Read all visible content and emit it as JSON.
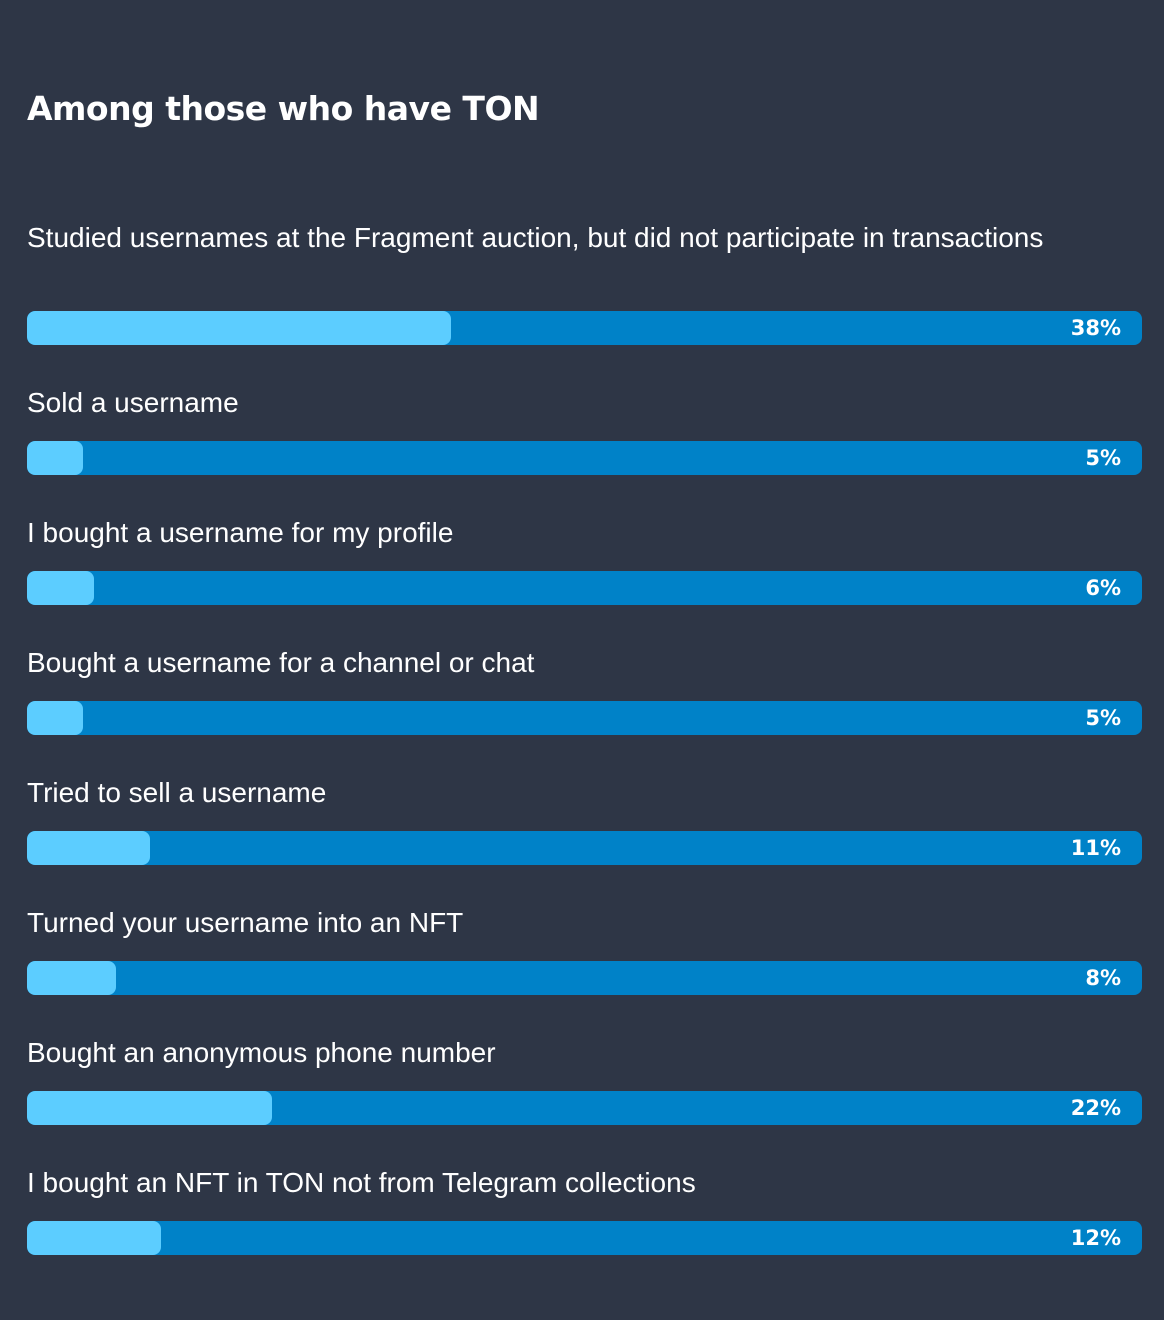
{
  "title": "Among those who have TON",
  "colors": {
    "background": "#2e3646",
    "track": "#0082c8",
    "fill": "#5ccdff",
    "text": "#ffffff"
  },
  "chart_data": {
    "type": "bar",
    "orientation": "horizontal",
    "title": "Among those who have TON",
    "xlim": [
      0,
      100
    ],
    "unit": "%",
    "categories": [
      "Studied usernames at the Fragment auction, but did not participate in transactions",
      "Sold a username",
      "I bought a username for my profile",
      "Bought a username for a channel or chat",
      "Tried to sell a username",
      "Turned your username into an NFT",
      "Bought an anonymous phone number",
      "I bought an NFT in TON not from Telegram collections"
    ],
    "values": [
      38,
      5,
      6,
      5,
      11,
      8,
      22,
      12
    ],
    "value_labels": [
      "38%",
      "5%",
      "6%",
      "5%",
      "11%",
      "8%",
      "22%",
      "12%"
    ]
  }
}
